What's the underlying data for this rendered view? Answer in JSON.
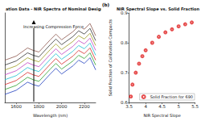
{
  "chart_data": [
    {
      "type": "line",
      "title": "ation Data - NIR Spectra of Nominal Design",
      "x_label": "Wavelength (nm)",
      "annotation": "Increasing Compression Force",
      "x": [
        1500,
        1600,
        1700,
        1750,
        1800,
        1900,
        1950,
        2000,
        2100,
        2150,
        2200,
        2250,
        2300
      ],
      "series": [
        {
          "color": "#1f3fbf",
          "values": [
            0.3,
            0.35,
            0.45,
            0.42,
            0.4,
            0.55,
            0.62,
            0.55,
            0.65,
            0.72,
            0.68,
            0.75,
            0.6
          ]
        },
        {
          "color": "#2ca02c",
          "values": [
            0.36,
            0.41,
            0.51,
            0.48,
            0.46,
            0.61,
            0.68,
            0.61,
            0.71,
            0.78,
            0.74,
            0.81,
            0.66
          ]
        },
        {
          "color": "#d62728",
          "values": [
            0.42,
            0.47,
            0.57,
            0.54,
            0.52,
            0.67,
            0.74,
            0.67,
            0.77,
            0.84,
            0.8,
            0.87,
            0.72
          ]
        },
        {
          "color": "#17becf",
          "values": [
            0.48,
            0.53,
            0.63,
            0.6,
            0.58,
            0.73,
            0.8,
            0.73,
            0.83,
            0.9,
            0.86,
            0.93,
            0.78
          ]
        },
        {
          "color": "#c040c0",
          "values": [
            0.54,
            0.59,
            0.69,
            0.66,
            0.64,
            0.79,
            0.86,
            0.79,
            0.89,
            0.96,
            0.92,
            0.99,
            0.84
          ]
        },
        {
          "color": "#9a9a20",
          "values": [
            0.6,
            0.65,
            0.75,
            0.72,
            0.7,
            0.85,
            0.92,
            0.85,
            0.95,
            1.02,
            0.98,
            1.05,
            0.9
          ]
        },
        {
          "color": "#333333",
          "values": [
            0.66,
            0.71,
            0.81,
            0.78,
            0.76,
            0.91,
            0.98,
            0.91,
            1.01,
            1.08,
            1.04,
            1.11,
            0.96
          ]
        },
        {
          "color": "#8c564b",
          "values": [
            0.72,
            0.77,
            0.87,
            0.84,
            0.82,
            0.97,
            1.04,
            0.97,
            1.07,
            1.14,
            1.1,
            1.17,
            1.02
          ]
        }
      ],
      "xlim": [
        1500,
        2300
      ],
      "xticks": [
        1600,
        1800,
        2000,
        2200
      ],
      "ylim": [
        0.2,
        1.3
      ],
      "grid": false,
      "tick_labels": "x"
    },
    {
      "type": "scatter",
      "panel_label": "(b)",
      "title": "NIR Spectral Slope vs. Solid Fraction",
      "x_label": "NIR Spectral Slope",
      "y_label": "Solid Fraction of Calibration Compacts",
      "x": [
        3.55,
        3.6,
        3.7,
        3.8,
        3.9,
        4.0,
        4.2,
        4.4,
        4.6,
        4.8,
        5.0,
        5.2,
        5.4
      ],
      "series": [
        {
          "name": "Solid Fraction for 690",
          "color": "#e02020",
          "marker": "circle",
          "values": [
            0.62,
            0.66,
            0.7,
            0.73,
            0.755,
            0.775,
            0.8,
            0.82,
            0.835,
            0.845,
            0.855,
            0.862,
            0.868
          ]
        }
      ],
      "xlim": [
        3.5,
        5.5
      ],
      "xticks": [
        3.5,
        4,
        4.5,
        5,
        5.5
      ],
      "ylim": [
        0.6,
        0.9
      ],
      "yticks": [
        0.6,
        0.7,
        0.8,
        0.9
      ],
      "grid": false,
      "legend": "lower right"
    }
  ]
}
